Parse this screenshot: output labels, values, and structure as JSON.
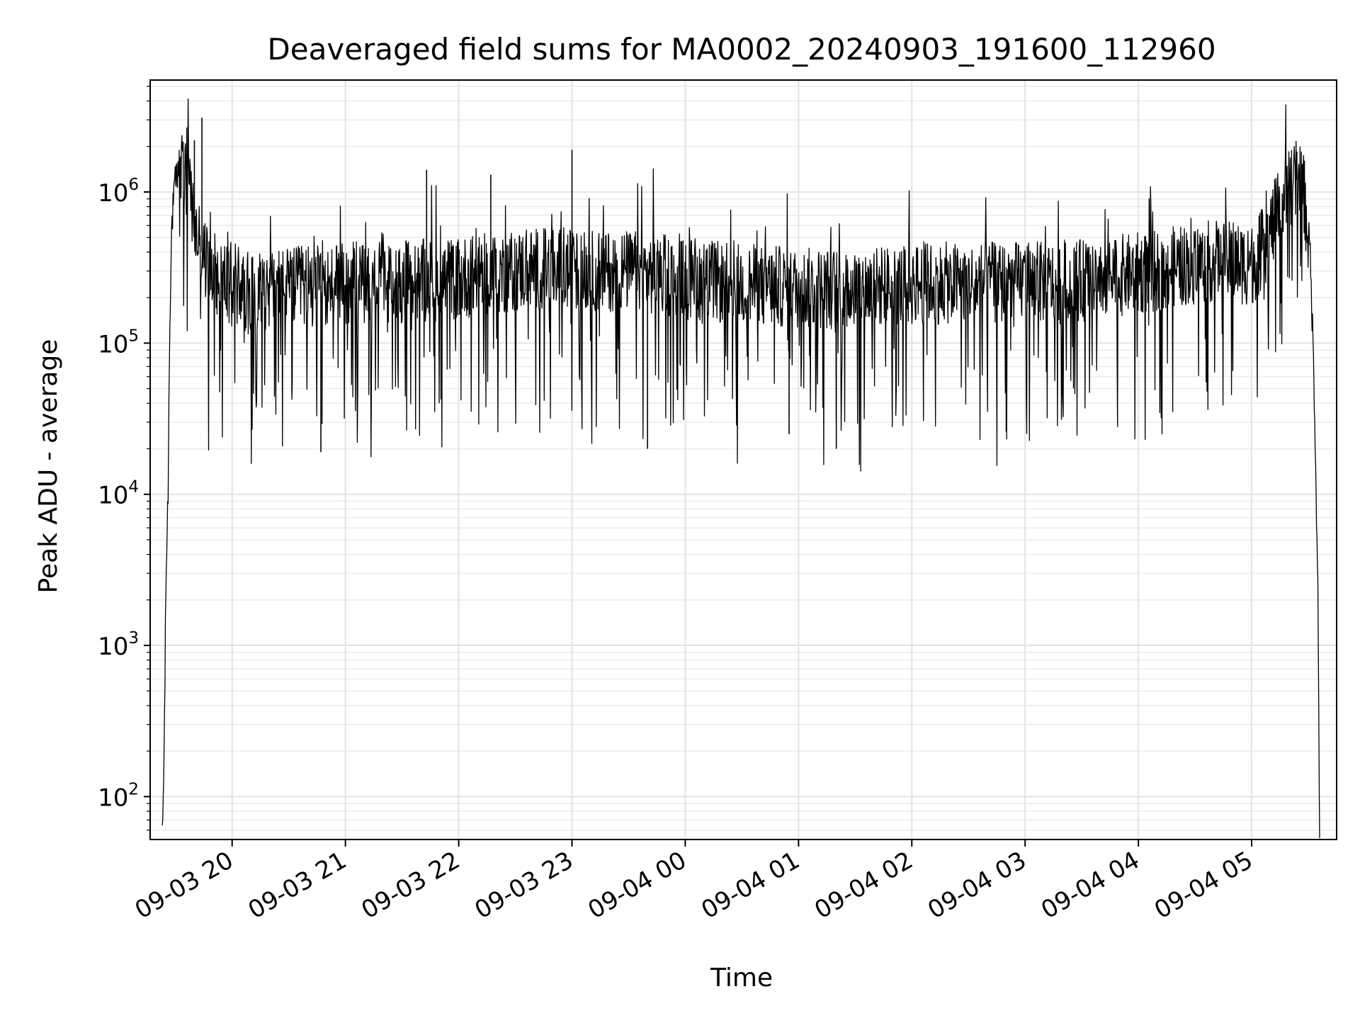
{
  "chart_data": {
    "type": "line",
    "title": "Deaveraged field sums for MA0002_20240903_191600_112960",
    "xlabel": "Time",
    "ylabel": "Peak ADU - average",
    "yscale": "log",
    "ylim": [
      52,
      5500000
    ],
    "xlim": [
      "2024-09-03 19:16:35",
      "2024-09-04 05:45:00"
    ],
    "grid": "major and minor, light gray",
    "legend": "none",
    "line_color": "#000000",
    "x_ticks": [
      {
        "t": "2024-09-03 20:00",
        "label": "09-03 20"
      },
      {
        "t": "2024-09-03 21:00",
        "label": "09-03 21"
      },
      {
        "t": "2024-09-03 22:00",
        "label": "09-03 22"
      },
      {
        "t": "2024-09-03 23:00",
        "label": "09-03 23"
      },
      {
        "t": "2024-09-04 00:00",
        "label": "09-04 00"
      },
      {
        "t": "2024-09-04 01:00",
        "label": "09-04 01"
      },
      {
        "t": "2024-09-04 02:00",
        "label": "09-04 02"
      },
      {
        "t": "2024-09-04 03:00",
        "label": "09-04 03"
      },
      {
        "t": "2024-09-04 04:00",
        "label": "09-04 04"
      },
      {
        "t": "2024-09-04 05:00",
        "label": "09-04 05"
      }
    ],
    "y_ticks": [
      {
        "value": 100,
        "base": "10",
        "exp": "2"
      },
      {
        "value": 1000,
        "base": "10",
        "exp": "3"
      },
      {
        "value": 10000,
        "base": "10",
        "exp": "4"
      },
      {
        "value": 100000,
        "base": "10",
        "exp": "5"
      },
      {
        "value": 1000000,
        "base": "10",
        "exp": "6"
      }
    ],
    "series": [
      {
        "x": [
          "2024-09-03 19:23",
          "2024-09-03 19:24",
          "2024-09-03 19:25",
          "2024-09-03 19:26",
          "2024-09-03 19:27",
          "2024-09-03 19:28",
          "2024-09-03 19:30",
          "2024-09-03 19:32",
          "2024-09-03 19:35",
          "2024-09-03 19:38",
          "2024-09-03 19:40",
          "2024-09-03 19:42",
          "2024-09-03 19:44",
          "2024-09-03 19:46",
          "2024-09-03 19:48",
          "2024-09-03 19:50",
          "2024-09-03 19:53",
          "2024-09-03 19:56",
          "2024-09-03 20:00",
          "2024-09-03 20:05",
          "2024-09-03 20:10",
          "2024-09-03 20:15",
          "2024-09-03 20:20",
          "2024-09-03 20:25",
          "2024-09-03 20:30",
          "2024-09-03 20:40",
          "2024-09-03 20:50",
          "2024-09-03 21:00",
          "2024-09-03 21:10",
          "2024-09-03 21:20",
          "2024-09-03 21:30",
          "2024-09-03 21:40",
          "2024-09-03 21:50",
          "2024-09-03 22:00",
          "2024-09-03 22:10",
          "2024-09-03 22:20",
          "2024-09-03 22:30",
          "2024-09-03 22:40",
          "2024-09-03 22:50",
          "2024-09-03 23:00",
          "2024-09-03 23:10",
          "2024-09-03 23:20",
          "2024-09-03 23:30",
          "2024-09-03 23:40",
          "2024-09-03 23:50",
          "2024-09-04 00:00",
          "2024-09-04 00:10",
          "2024-09-04 00:20",
          "2024-09-04 00:30",
          "2024-09-04 00:40",
          "2024-09-04 00:50",
          "2024-09-04 01:00",
          "2024-09-04 01:10",
          "2024-09-04 01:20",
          "2024-09-04 01:30",
          "2024-09-04 01:40",
          "2024-09-04 01:50",
          "2024-09-04 02:00",
          "2024-09-04 02:10",
          "2024-09-04 02:20",
          "2024-09-04 02:30",
          "2024-09-04 02:40",
          "2024-09-04 02:50",
          "2024-09-04 03:00",
          "2024-09-04 03:10",
          "2024-09-04 03:20",
          "2024-09-04 03:30",
          "2024-09-04 03:40",
          "2024-09-04 03:50",
          "2024-09-04 04:00",
          "2024-09-04 04:10",
          "2024-09-04 04:20",
          "2024-09-04 04:30",
          "2024-09-04 04:40",
          "2024-09-04 04:50",
          "2024-09-04 05:00",
          "2024-09-04 05:05",
          "2024-09-04 05:10",
          "2024-09-04 05:15",
          "2024-09-04 05:20",
          "2024-09-04 05:25",
          "2024-09-04 05:28",
          "2024-09-04 05:31",
          "2024-09-04 05:33",
          "2024-09-04 05:35",
          "2024-09-04 05:36"
        ],
        "y": [
          50,
          200,
          3000,
          9000,
          150000,
          600000,
          1200000,
          1500000,
          1300000,
          900000,
          600000,
          450000,
          400000,
          350000,
          320000,
          300000,
          280000,
          260000,
          250000,
          240000,
          230000,
          230000,
          230000,
          230000,
          230000,
          240000,
          240000,
          250000,
          250000,
          250000,
          250000,
          260000,
          260000,
          270000,
          280000,
          290000,
          300000,
          310000,
          310000,
          300000,
          300000,
          300000,
          300000,
          290000,
          280000,
          270000,
          260000,
          250000,
          245000,
          240000,
          235000,
          230000,
          230000,
          230000,
          230000,
          235000,
          240000,
          245000,
          250000,
          250000,
          250000,
          250000,
          250000,
          250000,
          250000,
          250000,
          260000,
          270000,
          280000,
          290000,
          300000,
          320000,
          340000,
          350000,
          340000,
          330000,
          400000,
          550000,
          800000,
          1100000,
          1200000,
          900000,
          400000,
          60000,
          3000,
          50
        ]
      }
    ],
    "spikes": {
      "max_values": [
        2200000,
        3100000,
        1400000,
        1300000,
        1900000
      ],
      "max_value_times": [
        "2024-09-03 19:40",
        "2024-09-03 19:44",
        "2024-09-03 21:43",
        "2024-09-03 22:17",
        "2024-09-03 23:00"
      ],
      "min_values": [
        19000,
        20000,
        20000,
        25000,
        26000
      ],
      "min_value_times": [
        "2024-09-03 20:47",
        "2024-09-03 23:40",
        "2024-09-04 01:20",
        "2024-09-04 00:55",
        "2024-09-04 02:50"
      ]
    }
  }
}
